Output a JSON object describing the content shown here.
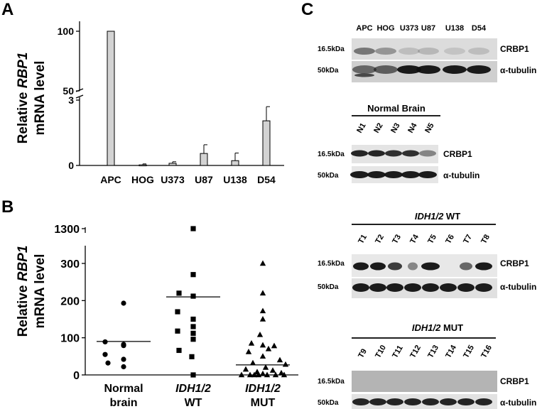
{
  "panels": {
    "a": "A",
    "b": "B",
    "c": "C"
  },
  "chart_data": [
    {
      "type": "bar",
      "panel": "A",
      "ylabel": [
        "Relative RBP1",
        "mRNA level"
      ],
      "ylabel_italic_word": "RBP1",
      "categories": [
        "APC",
        "HOG",
        "U373",
        "U87",
        "U138",
        "D54"
      ],
      "values": [
        100,
        0.03,
        0.1,
        0.55,
        0.22,
        2.05
      ],
      "errors": [
        0,
        0.04,
        0.07,
        0.4,
        0.35,
        0.65
      ],
      "y_ticks_lower": [
        "0",
        "3"
      ],
      "y_ticks_upper": [
        "50",
        "100"
      ],
      "ylim_lower": [
        0,
        3
      ],
      "ylim_upper": [
        3,
        100
      ],
      "axis_break": true,
      "bar_color": "#d3d3d3"
    },
    {
      "type": "scatter",
      "panel": "B",
      "ylabel": [
        "Relative RBP1",
        "mRNA level"
      ],
      "ylabel_italic_word": "RBP1",
      "y_ticks": [
        "0",
        "100",
        "200",
        "300",
        "1300"
      ],
      "axis_break": true,
      "ylim": [
        0,
        300
      ],
      "categories": [
        {
          "line1": "Normal",
          "line2": "brain",
          "italic1": false
        },
        {
          "line1": "IDH1/2",
          "line2": "WT",
          "italic1": true
        },
        {
          "line1": "IDH1/2",
          "line2": "MUT",
          "italic1": true
        }
      ],
      "series": [
        {
          "marker": "circle",
          "values": [
            193,
            89,
            82,
            79,
            55,
            42,
            32,
            22
          ],
          "median": 90
        },
        {
          "marker": "square",
          "values": [
            1300,
            270,
            220,
            212,
            170,
            150,
            130,
            118,
            112,
            96,
            66,
            49,
            0
          ],
          "median": 210
        },
        {
          "marker": "triangle",
          "values": [
            300,
            220,
            172,
            150,
            108,
            85,
            80,
            78,
            70,
            62,
            50,
            40,
            32,
            28,
            20,
            15,
            12,
            8,
            5,
            3,
            0,
            0,
            0,
            0,
            0,
            0,
            0
          ],
          "median": 27
        }
      ]
    }
  ],
  "western": {
    "blot1": {
      "lanes": [
        "APC",
        "HOG",
        "U373",
        "U87",
        "U138",
        "D54"
      ],
      "rows": [
        {
          "kda": "16.5kDa",
          "protein": "CRBP1"
        },
        {
          "kda": "50kDa",
          "protein": "α-tubulin"
        }
      ]
    },
    "blot2": {
      "title": "Normal Brain",
      "lanes": [
        "N1",
        "N2",
        "N3",
        "N4",
        "N5"
      ],
      "rows": [
        {
          "kda": "16.5kDa",
          "protein": "CRBP1"
        },
        {
          "kda": "50kDa",
          "protein": "α-tubulin"
        }
      ]
    },
    "blot3": {
      "title_italic": "IDH1/2",
      "title_rest": " WT",
      "lanes": [
        "T1",
        "T2",
        "T3",
        "T4",
        "T5",
        "T6",
        "T7",
        "T8"
      ],
      "rows": [
        {
          "kda": "16.5kDa",
          "protein": "CRBP1"
        },
        {
          "kda": "50kDa",
          "protein": "α-tubulin"
        }
      ]
    },
    "blot4": {
      "title_italic": "IDH1/2",
      "title_rest": " MUT",
      "lanes": [
        "T9",
        "T10",
        "T11",
        "T12",
        "T13",
        "T14",
        "T15",
        "T16"
      ],
      "rows": [
        {
          "kda": "16.5kDa",
          "protein": "CRBP1"
        },
        {
          "kda": "50kDa",
          "protein": "α-tubulin"
        }
      ]
    }
  }
}
